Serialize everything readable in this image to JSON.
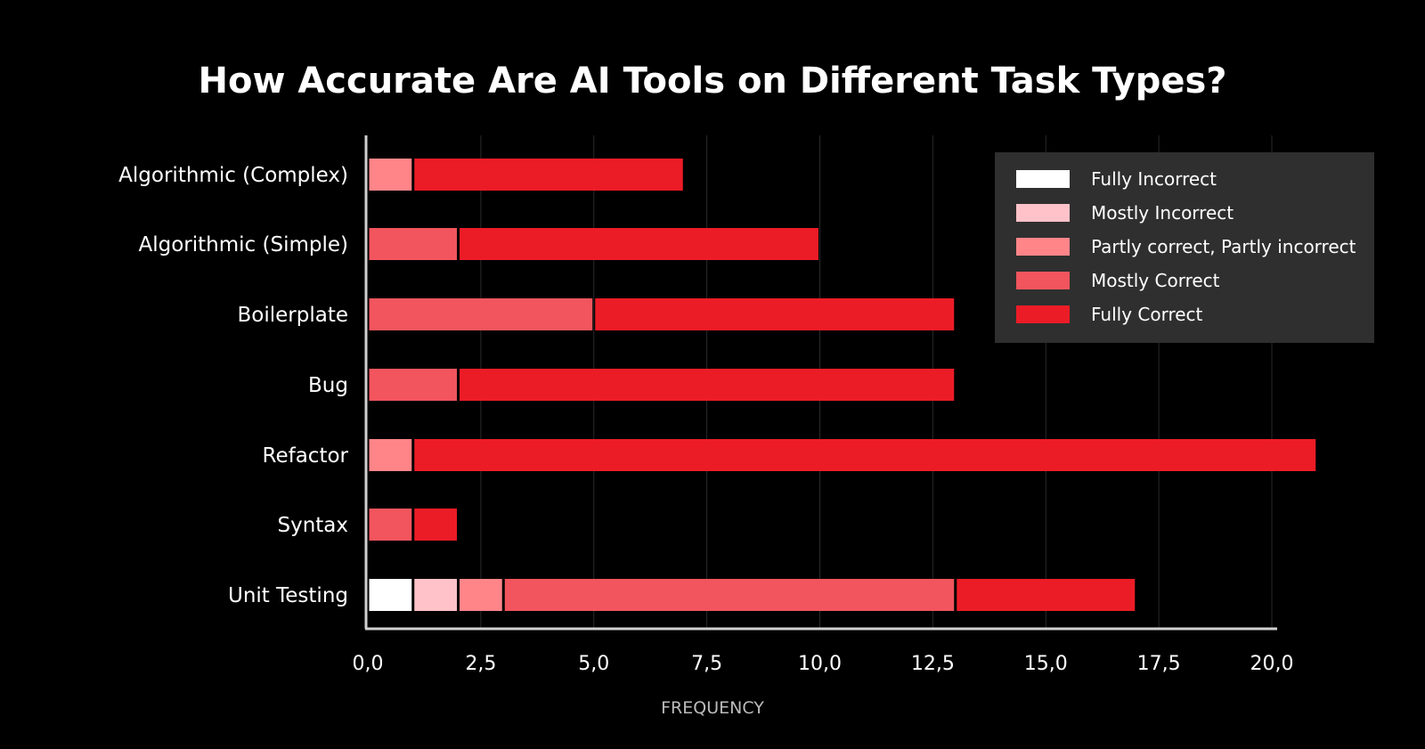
{
  "chart_data": {
    "type": "bar",
    "orientation": "horizontal",
    "stacked": true,
    "title": "How Accurate Are AI Tools on Different Task Types?",
    "xlabel": "FREQUENCY",
    "ylabel": "",
    "xlim": [
      0,
      20
    ],
    "x_ticks": [
      "0,0",
      "2,5",
      "5,0",
      "7,5",
      "10,0",
      "12,5",
      "15,0",
      "17,5",
      "20,0"
    ],
    "grid": "vertical",
    "legend_position": "top-right",
    "categories": [
      "Algorithmic (Complex)",
      "Algorithmic (Simple)",
      "Boilerplate",
      "Bug",
      "Refactor",
      "Syntax",
      "Unit Testing"
    ],
    "series": [
      {
        "name": "Fully Incorrect",
        "color": "#FFFFFF",
        "values": [
          0,
          0,
          0,
          0,
          0,
          0,
          1
        ]
      },
      {
        "name": "Mostly Incorrect",
        "color": "#FFC2C8",
        "values": [
          0,
          0,
          0,
          0,
          0,
          0,
          1
        ]
      },
      {
        "name": "Partly correct, Partly incorrect",
        "color": "#FF8589",
        "values": [
          1,
          0,
          0,
          0,
          1,
          0,
          1
        ]
      },
      {
        "name": "Mostly Correct",
        "color": "#F2555D",
        "values": [
          0,
          2,
          5,
          2,
          0,
          1,
          10
        ]
      },
      {
        "name": "Fully Correct",
        "color": "#EC1C27",
        "values": [
          6,
          8,
          8,
          11,
          20,
          1,
          4
        ]
      }
    ]
  },
  "colors": {
    "background": "#000000",
    "text": "#FFFFFF",
    "axis_label": "#BBBBBB",
    "axis_line": "#D0D0D0",
    "grid": "#2A2A2A",
    "legend_bg": "#2F2F2F"
  }
}
